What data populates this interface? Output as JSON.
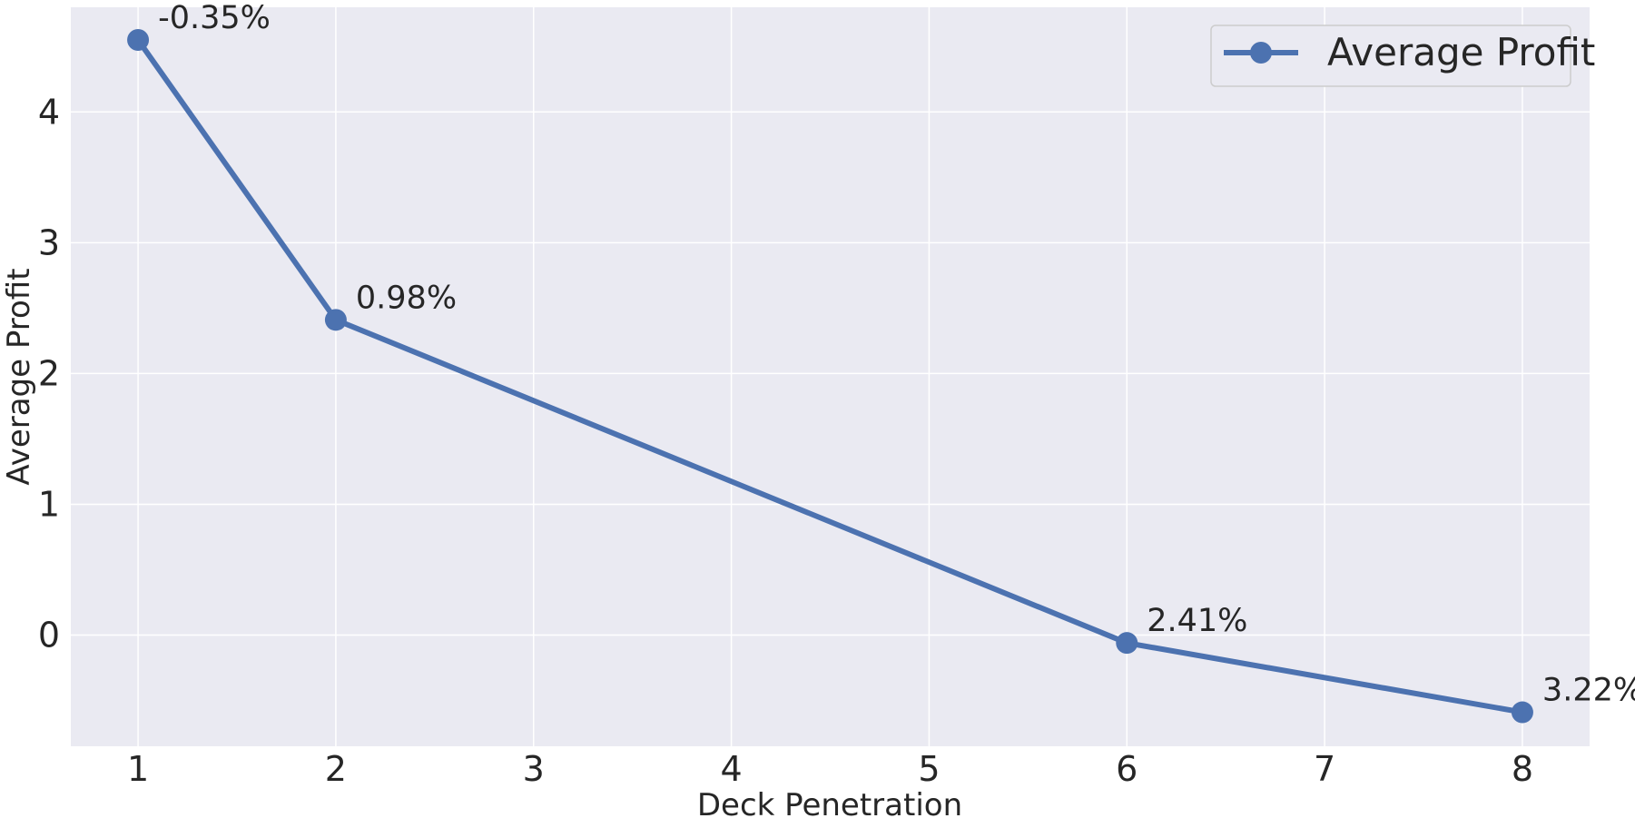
{
  "chart_data": {
    "type": "line",
    "title": "",
    "xlabel": "Deck Penetration",
    "ylabel": "Average Profit",
    "xlim": [
      0.66,
      8.34
    ],
    "ylim": [
      -0.85,
      4.8
    ],
    "xticks": [
      1,
      2,
      3,
      4,
      5,
      6,
      7,
      8
    ],
    "yticks": [
      0,
      1,
      2,
      3,
      4
    ],
    "grid": true,
    "legend_position": "top-right",
    "series": [
      {
        "name": "Average Profit",
        "color": "#4c72b0",
        "x": [
          1,
          2,
          6,
          8
        ],
        "y": [
          4.55,
          2.41,
          -0.06,
          -0.59
        ],
        "labels": [
          "-0.35%",
          "0.98%",
          "2.41%",
          "3.22%"
        ]
      }
    ]
  }
}
